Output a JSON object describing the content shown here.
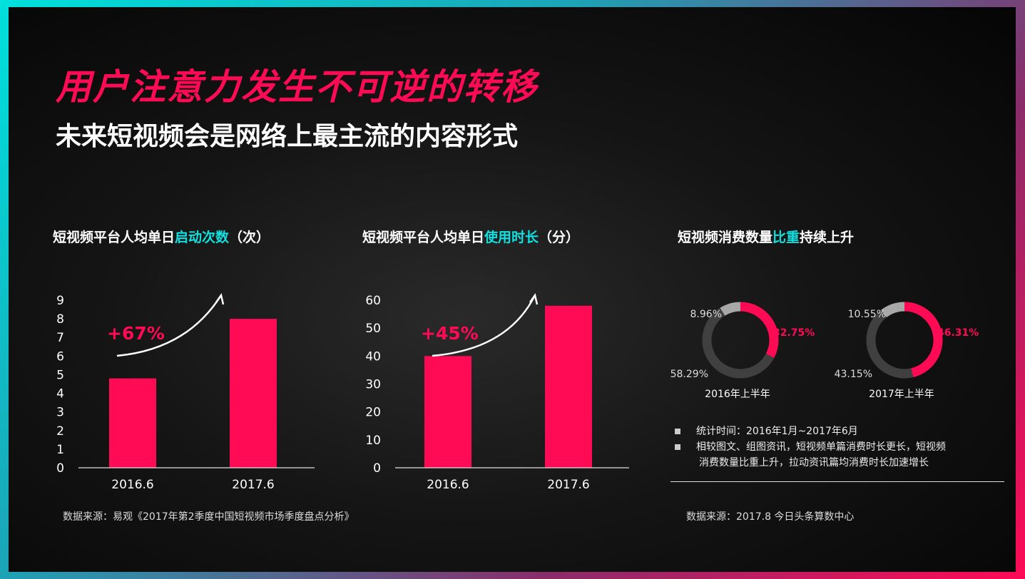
{
  "header": {
    "title": "用户注意力发生不可逆的转移",
    "subtitle": "未来短视频会是网络上最主流的内容形式"
  },
  "colors": {
    "accent": "#ff0a55",
    "highlight": "#10e0e0",
    "donut_dark": "#404040",
    "donut_light": "#a8a8a8"
  },
  "chart_data": [
    {
      "type": "bar",
      "title_parts": [
        "短视频平台人均单日",
        "启动次数",
        "（次）"
      ],
      "categories": [
        "2016.6",
        "2017.6"
      ],
      "values": [
        4.8,
        8.0
      ],
      "yticks": [
        "0",
        "1",
        "2",
        "3",
        "4",
        "5",
        "6",
        "7",
        "8",
        "9"
      ],
      "ylim": [
        0,
        9
      ],
      "annotation": "+67%"
    },
    {
      "type": "bar",
      "title_parts": [
        "短视频平台人均单日",
        "使用时长",
        "（分）"
      ],
      "categories": [
        "2016.6",
        "2017.6"
      ],
      "values": [
        40,
        58
      ],
      "yticks": [
        "0",
        "10",
        "20",
        "30",
        "40",
        "50",
        "60"
      ],
      "ylim": [
        0,
        60
      ],
      "annotation": "+45%"
    },
    {
      "type": "pie",
      "title_parts": [
        "短视频消费数量",
        "比重",
        "持续上升"
      ],
      "donuts": [
        {
          "label": "2016年上半年",
          "slices": [
            {
              "value": 32.75,
              "text": "32.75%"
            },
            {
              "value": 58.29,
              "text": "58.29%"
            },
            {
              "value": 8.96,
              "text": "8.96%"
            }
          ]
        },
        {
          "label": "2017年上半年",
          "slices": [
            {
              "value": 46.31,
              "text": "46.31%"
            },
            {
              "value": 43.15,
              "text": "43.15%"
            },
            {
              "value": 10.55,
              "text": "10.55%"
            }
          ]
        }
      ]
    }
  ],
  "notes": [
    "统计时间：2016年1月~2017年6月",
    "相较图文、组图资讯，短视频单篇消费时长更长，短视频",
    "消费数量比重上升，拉动资讯篇均消费时长加速增长"
  ],
  "sources": [
    "数据来源：易观《2017年第2季度中国短视频市场季度盘点分析》",
    "数据来源：2017.8 今日头条算数中心"
  ]
}
